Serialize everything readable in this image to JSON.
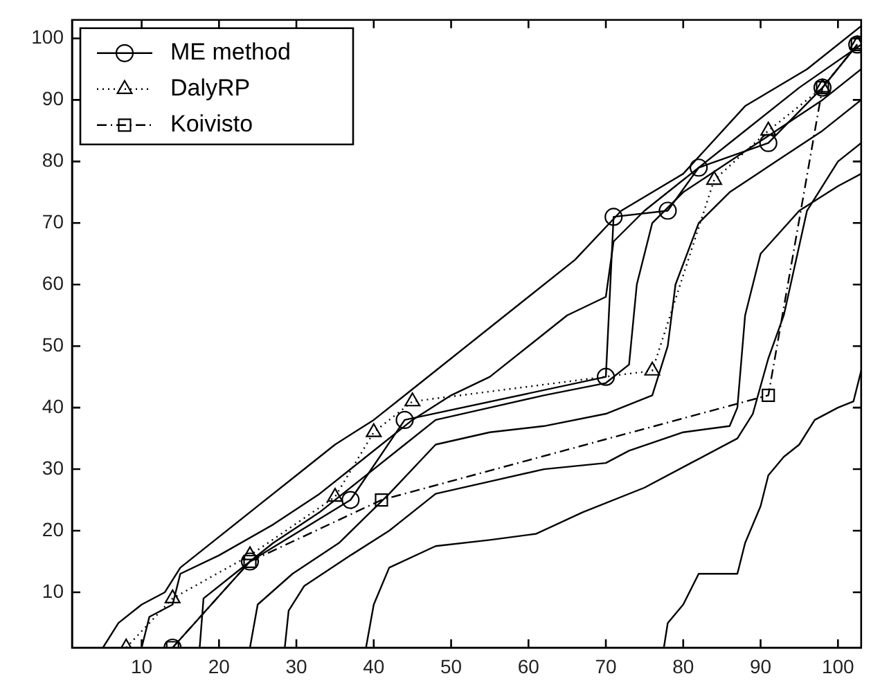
{
  "chart_data": {
    "type": "line",
    "xlim": [
      1,
      103
    ],
    "ylim": [
      1,
      103
    ],
    "xticks": [
      10,
      20,
      30,
      40,
      50,
      60,
      70,
      80,
      90,
      100
    ],
    "yticks": [
      10,
      20,
      30,
      40,
      50,
      60,
      70,
      80,
      90,
      100
    ],
    "grid": false,
    "legend": "top left",
    "series": [
      {
        "name": "ME method",
        "color": "#000000",
        "marker": "circle",
        "line_style": "solid",
        "x": [
          14,
          24,
          37,
          44,
          70,
          71,
          78,
          82,
          91,
          98,
          102.5
        ],
        "values": [
          1,
          15,
          25,
          38,
          45,
          71,
          72,
          79,
          83,
          92,
          99
        ]
      },
      {
        "name": "DalyRP",
        "color": "#000000",
        "marker": "triangle",
        "line_style": "dotted",
        "x": [
          8,
          14,
          24,
          35,
          40,
          45,
          76,
          84,
          91,
          98,
          102.5
        ],
        "values": [
          1,
          9,
          16,
          25.5,
          36,
          41,
          46,
          77,
          85,
          92,
          99
        ]
      },
      {
        "name": "Koivisto",
        "color": "#000000",
        "marker": "square",
        "line_style": "dashed",
        "x": [
          14,
          24,
          41,
          91,
          98,
          102.5
        ],
        "values": [
          1,
          15,
          25,
          42,
          92,
          99
        ]
      },
      {
        "color": "#000000",
        "marker": "none",
        "line_style": "solid",
        "x": [
          5,
          7,
          10,
          13,
          15,
          20,
          25,
          30,
          35,
          40,
          45,
          50,
          55,
          60,
          66,
          72,
          80,
          88,
          96,
          103
        ],
        "values": [
          1,
          5,
          8,
          10,
          14,
          19,
          24,
          29,
          34,
          38,
          43,
          48,
          53,
          58,
          64,
          72,
          78,
          89,
          95,
          102
        ]
      },
      {
        "color": "#000000",
        "marker": "none",
        "line_style": "solid",
        "x": [
          10,
          11,
          14,
          15,
          20,
          27,
          33,
          39,
          45,
          50,
          55,
          60,
          65,
          70,
          71,
          75,
          80,
          87,
          95,
          103
        ],
        "values": [
          1,
          6,
          8,
          13,
          16,
          21,
          26,
          32,
          38,
          42,
          45,
          50,
          55,
          58,
          67,
          72,
          77,
          84,
          92,
          99
        ]
      },
      {
        "color": "#000000",
        "marker": "none",
        "line_style": "solid",
        "x": [
          17.5,
          18,
          22,
          27,
          33,
          38,
          44,
          48,
          55,
          62,
          70,
          73,
          74,
          76,
          80,
          86,
          92,
          98,
          103
        ],
        "values": [
          1,
          9,
          13,
          18,
          23,
          28,
          34,
          38,
          40,
          42,
          44,
          47,
          60,
          70,
          75,
          80,
          85,
          90,
          95
        ]
      },
      {
        "color": "#000000",
        "marker": "none",
        "line_style": "solid",
        "x": [
          24,
          25,
          29.5,
          35.5,
          42,
          48,
          55,
          62,
          70,
          76,
          78,
          79,
          82,
          86,
          92,
          98,
          103
        ],
        "values": [
          1,
          8,
          13,
          18,
          26,
          34,
          36,
          37,
          39,
          42,
          50,
          60,
          70,
          75,
          80,
          85,
          90
        ]
      },
      {
        "color": "#000000",
        "marker": "none",
        "line_style": "solid",
        "x": [
          28.5,
          29,
          31,
          37,
          42,
          48,
          55,
          62,
          70,
          73,
          80,
          86,
          87,
          88,
          90,
          95,
          100,
          103
        ],
        "values": [
          1,
          7,
          11,
          16,
          20,
          26,
          28,
          30,
          31,
          33,
          36,
          37,
          40,
          55,
          65,
          72,
          76,
          78
        ]
      },
      {
        "color": "#000000",
        "marker": "none",
        "line_style": "solid",
        "x": [
          39,
          40,
          42,
          48,
          55,
          61,
          67,
          75,
          81,
          87,
          89,
          91,
          93,
          96,
          100,
          103
        ],
        "values": [
          1,
          8,
          14,
          17.5,
          18.5,
          19.5,
          23,
          27,
          31,
          35,
          39,
          48,
          55,
          72,
          80,
          83
        ]
      },
      {
        "color": "#000000",
        "marker": "none",
        "line_style": "solid",
        "x": [
          77.5,
          78,
          80,
          82,
          87,
          88,
          90,
          91,
          93,
          95,
          97,
          100,
          102,
          103
        ],
        "values": [
          1,
          5,
          8,
          13,
          13,
          18,
          24,
          29,
          32,
          34,
          38,
          40,
          41,
          46
        ]
      }
    ]
  }
}
